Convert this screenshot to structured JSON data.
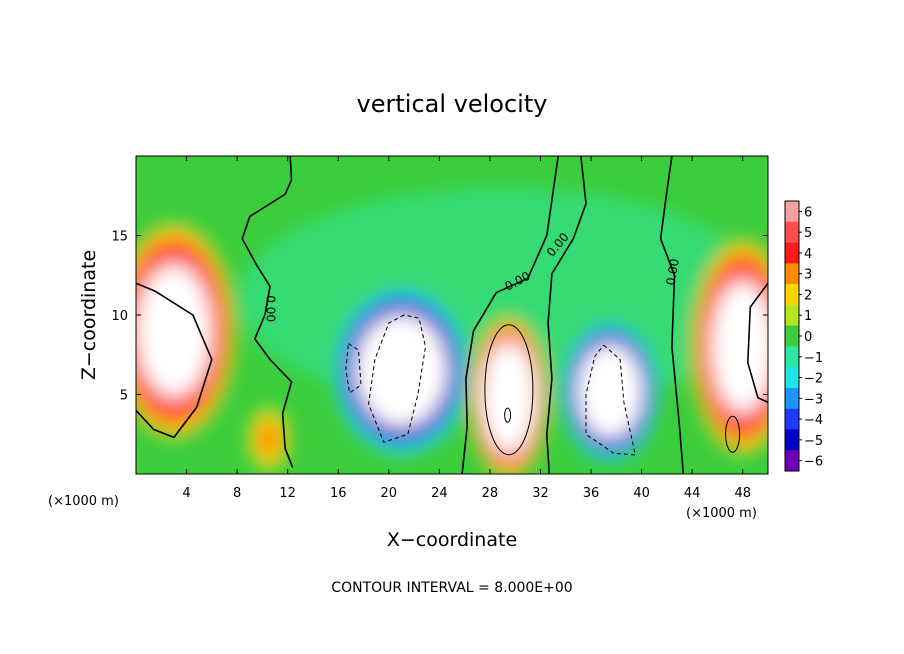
{
  "chart_data": {
    "type": "heatmap",
    "title": "vertical velocity",
    "xlabel": "X−coordinate",
    "ylabel": "Z−coordinate",
    "x_unit_left": "(×1000 m)",
    "x_unit_right": "(×1000 m)",
    "xlim": [
      0,
      50
    ],
    "ylim": [
      0,
      20
    ],
    "x_ticks": [
      4,
      8,
      12,
      16,
      20,
      24,
      28,
      32,
      36,
      40,
      44,
      48
    ],
    "x_tick_labels": [
      "4",
      "8",
      "12",
      "16",
      "20",
      "24",
      "28",
      "32",
      "36",
      "40",
      "44",
      "48"
    ],
    "y_ticks": [
      5,
      10,
      15
    ],
    "y_tick_labels": [
      "5",
      "10",
      "15"
    ],
    "footer": "CONTOUR INTERVAL = 8.000E+00",
    "contour_labels": [
      "0.00",
      "0.00",
      "0.00",
      "0.00"
    ],
    "colorbar": {
      "levels": [
        6,
        5,
        4,
        3,
        2,
        1,
        0,
        -1,
        -2,
        -3,
        -4,
        -5,
        -6
      ],
      "level_labels": [
        "6",
        "5",
        "4",
        "3",
        "2",
        "1",
        "0",
        "−1",
        "−2",
        "−3",
        "−4",
        "−5",
        "−6"
      ],
      "colors": [
        "#f4a0a0",
        "#ff4d4d",
        "#ff1a1a",
        "#ff8c00",
        "#ffd400",
        "#b4e61e",
        "#3ccd3c",
        "#2ee6a0",
        "#1ee6e6",
        "#1e96ff",
        "#1e3cff",
        "#0000c8",
        "#6e00b4"
      ]
    },
    "features": [
      {
        "kind": "updraft",
        "x": 3,
        "z": 9,
        "rx": 5,
        "rz": 7,
        "amp": 11
      },
      {
        "kind": "downdraft",
        "x": 21,
        "z": 6.5,
        "rx": 5.6,
        "rz": 5.5,
        "amp": -12
      },
      {
        "kind": "updraft",
        "x": 29.5,
        "z": 4.8,
        "rx": 3.2,
        "rz": 5.3,
        "amp": 13
      },
      {
        "kind": "downdraft",
        "x": 37.5,
        "z": 5.2,
        "rx": 4.0,
        "rz": 4.6,
        "amp": -12
      },
      {
        "kind": "updraft",
        "x": 48,
        "z": 8,
        "rx": 4.2,
        "rz": 7,
        "amp": 11
      },
      {
        "kind": "updraft",
        "x": 10.5,
        "z": 2.2,
        "rx": 1.8,
        "rz": 2.2,
        "amp": 3.5
      }
    ]
  }
}
